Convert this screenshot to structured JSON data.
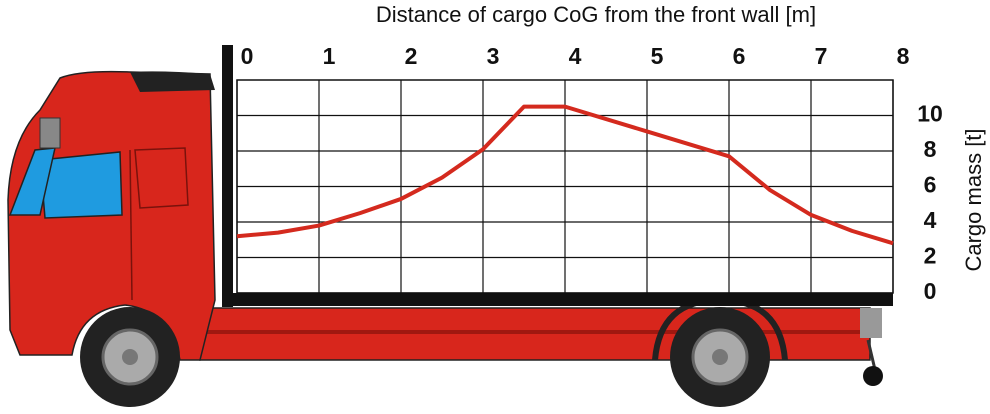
{
  "chart_data": {
    "type": "line",
    "title": "Distance of cargo CoG from the front wall [m]",
    "y_label": "Cargo mass [t]",
    "x": [
      0,
      0.5,
      1,
      1.5,
      2,
      2.5,
      3,
      3.5,
      4,
      5,
      6,
      6.5,
      7,
      7.5,
      8
    ],
    "series": [
      {
        "color": "#d42a1e",
        "values": [
          3.2,
          3.4,
          3.8,
          4.5,
          5.3,
          6.5,
          8.1,
          10.5,
          10.5,
          9.1,
          7.7,
          5.8,
          4.4,
          3.5,
          2.8
        ]
      }
    ],
    "xlim": [
      0,
      8
    ],
    "xticks": [
      0,
      1,
      2,
      3,
      4,
      5,
      6,
      7,
      8
    ],
    "ylim": [
      0,
      12
    ],
    "yticks": [
      0,
      2,
      4,
      6,
      8,
      10
    ],
    "grid": true
  }
}
